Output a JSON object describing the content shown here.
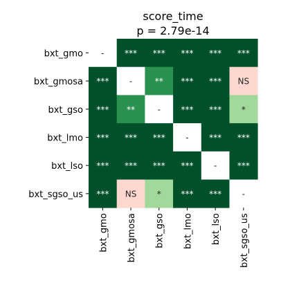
{
  "chart_data": {
    "type": "heatmap",
    "title": "score_time",
    "subtitle": "p = 2.79e-14",
    "rows": [
      "bxt_gmo",
      "bxt_gmosa",
      "bxt_gso",
      "bxt_lmo",
      "bxt_lso",
      "bxt_sgso_us"
    ],
    "columns": [
      "bxt_gmo",
      "bxt_gmosa",
      "bxt_gso",
      "bxt_lmo",
      "bxt_lso",
      "bxt_sgso_us"
    ],
    "cells": [
      [
        "-",
        "***",
        "***",
        "***",
        "***",
        "***"
      ],
      [
        "***",
        "-",
        "**",
        "***",
        "***",
        "NS"
      ],
      [
        "***",
        "**",
        "-",
        "***",
        "***",
        "*"
      ],
      [
        "***",
        "***",
        "***",
        "-",
        "***",
        "***"
      ],
      [
        "***",
        "***",
        "***",
        "***",
        "-",
        "***"
      ],
      [
        "***",
        "NS",
        "*",
        "***",
        "***",
        "-"
      ]
    ],
    "colors": {
      "***": "#00512a",
      "**": "#2b9150",
      "*": "#a1d99b",
      "NS": "#fdd7d0",
      "-": "#ffffff"
    },
    "text_colors": {
      "***": "#ffffff",
      "**": "#ffffff",
      "*": "#262626",
      "NS": "#262626",
      "-": "#262626"
    }
  }
}
